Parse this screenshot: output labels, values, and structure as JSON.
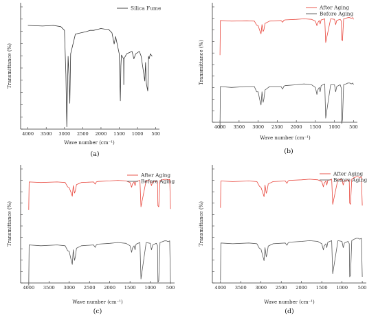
{
  "figure": {
    "panels": [
      {
        "id": "a",
        "label": "(a)"
      },
      {
        "id": "b",
        "label": "(b)"
      },
      {
        "id": "c",
        "label": "(c)"
      },
      {
        "id": "d",
        "label": "(d)"
      }
    ]
  },
  "chart_data": [
    {
      "type": "line",
      "panel": "(a)",
      "xlabel": "Wave number (cm⁻¹)",
      "ylabel": "Transmittance (%)",
      "xlim": [
        4200,
        400
      ],
      "x_reversed": true,
      "xticks": [
        4000,
        3500,
        3000,
        2500,
        2000,
        1500,
        1000,
        500
      ],
      "legend_position": "top-right",
      "series": [
        {
          "name": "Silica Fume",
          "color": "#333333",
          "x": [
            4000,
            3600,
            3300,
            3100,
            3000,
            2960,
            2935,
            2900,
            2870,
            2853,
            2830,
            2700,
            2400,
            2300,
            2200,
            2000,
            1900,
            1800,
            1700,
            1640,
            1600,
            1500,
            1470,
            1455,
            1440,
            1380,
            1376,
            1370,
            1300,
            1150,
            1100,
            1050,
            950,
            900,
            850,
            800,
            780,
            760,
            720,
            700,
            680,
            650,
            600
          ],
          "y": [
            85,
            84.5,
            85,
            84,
            81,
            45,
            3,
            60,
            40,
            22,
            62,
            78,
            80,
            81,
            81,
            82.5,
            82,
            82,
            79,
            70,
            76,
            62,
            24,
            52,
            61,
            58,
            37,
            58,
            62,
            64,
            58,
            62,
            64,
            60,
            50,
            40,
            55,
            38,
            32,
            60,
            58,
            62,
            60
          ]
        }
      ]
    },
    {
      "type": "line",
      "panel": "(b)",
      "xlabel": "Wave number (cm⁻¹)",
      "ylabel": "Transmittance (%)",
      "xlim": [
        4200,
        400
      ],
      "x_reversed": true,
      "xticks": [
        4000,
        3500,
        3000,
        2500,
        2000,
        1500,
        1000,
        500
      ],
      "legend_position": "top-right",
      "series": [
        {
          "name": "After Aging",
          "color": "#e8443a",
          "x": [
            4000,
            3990,
            3700,
            3300,
            3100,
            3040,
            3000,
            2960,
            2925,
            2900,
            2870,
            2850,
            2820,
            2700,
            2400,
            2360,
            2330,
            2300,
            2000,
            1800,
            1600,
            1500,
            1460,
            1440,
            1400,
            1376,
            1350,
            1300,
            1255,
            1230,
            1100,
            1000,
            970,
            940,
            900,
            850,
            820,
            810,
            790,
            760,
            700,
            650,
            600,
            560,
            520,
            500
          ],
          "y": [
            33,
            93,
            92,
            92.5,
            92,
            85,
            84,
            76,
            70,
            86,
            74,
            77,
            88,
            92,
            93,
            90,
            93,
            94,
            95,
            96,
            95,
            92,
            84,
            89,
            93,
            87,
            94,
            95,
            96,
            55,
            96,
            95,
            86,
            93,
            94,
            95,
            92,
            60,
            58,
            96,
            97,
            98,
            98,
            97,
            98,
            95
          ]
        },
        {
          "name": "Before Aging",
          "color": "#555555",
          "x": [
            4000,
            3990,
            3700,
            3300,
            3100,
            3040,
            3000,
            2960,
            2925,
            2900,
            2870,
            2850,
            2820,
            2700,
            2400,
            2360,
            2330,
            2300,
            2000,
            1800,
            1600,
            1500,
            1460,
            1440,
            1400,
            1376,
            1350,
            1300,
            1255,
            1230,
            1100,
            1000,
            970,
            940,
            900,
            850,
            820,
            810,
            790,
            760,
            700,
            650,
            600,
            560,
            520,
            500
          ],
          "y": [
            2,
            50,
            49,
            50,
            50,
            44,
            44,
            35,
            29,
            44,
            32,
            36,
            46,
            50,
            50,
            47,
            50,
            51,
            52,
            53,
            52,
            49,
            41,
            46,
            49,
            44,
            51,
            52,
            53,
            14,
            52,
            52,
            44,
            50,
            51,
            52,
            48,
            8,
            12,
            52,
            53,
            54,
            54,
            53,
            54,
            52
          ]
        }
      ]
    },
    {
      "type": "line",
      "panel": "(c)",
      "xlabel": "Wave number (cm⁻¹)",
      "ylabel": "Transmittance (%)",
      "xlim": [
        4200,
        400
      ],
      "x_reversed": true,
      "xticks": [
        4000,
        3500,
        3000,
        2500,
        2000,
        1500,
        1000,
        500
      ],
      "legend_position": "top-right",
      "series": [
        {
          "name": "After Aging",
          "color": "#e8443a",
          "x": [
            4000,
            3990,
            3700,
            3300,
            3100,
            3040,
            3000,
            2960,
            2925,
            2900,
            2870,
            2850,
            2820,
            2700,
            2400,
            2360,
            2330,
            2300,
            2000,
            1800,
            1600,
            1500,
            1460,
            1440,
            1400,
            1376,
            1350,
            1300,
            1255,
            1230,
            1100,
            1000,
            970,
            940,
            900,
            850,
            820,
            810,
            790,
            760,
            700,
            650,
            600,
            560,
            520,
            500
          ],
          "y": [
            38,
            91,
            90,
            91,
            90,
            82,
            80,
            72,
            64,
            84,
            70,
            74,
            86,
            90,
            91,
            87,
            91,
            92,
            93,
            94,
            93,
            90,
            81,
            87,
            91,
            84,
            92,
            93,
            94,
            44,
            94,
            93,
            84,
            91,
            92,
            93,
            90,
            46,
            44,
            94,
            95,
            96,
            96,
            95,
            96,
            40
          ]
        },
        {
          "name": "Before Aging",
          "color": "#555555",
          "x": [
            4000,
            3990,
            3700,
            3300,
            3100,
            3040,
            3000,
            2960,
            2925,
            2900,
            2870,
            2850,
            2820,
            2700,
            2400,
            2360,
            2330,
            2300,
            2000,
            1800,
            1600,
            1500,
            1460,
            1440,
            1400,
            1376,
            1350,
            1300,
            1255,
            1230,
            1100,
            1000,
            970,
            940,
            900,
            850,
            820,
            810,
            790,
            760,
            700,
            650,
            600,
            560,
            520,
            500
          ],
          "y": [
            2,
            52,
            51,
            52,
            51,
            45,
            44,
            35,
            28,
            46,
            33,
            37,
            48,
            51,
            52,
            49,
            52,
            53,
            54,
            55,
            54,
            51,
            43,
            48,
            51,
            46,
            53,
            54,
            55,
            10,
            55,
            54,
            46,
            52,
            53,
            54,
            51,
            6,
            8,
            55,
            56,
            57,
            57,
            56,
            57,
            4
          ]
        }
      ]
    },
    {
      "type": "line",
      "panel": "(d)",
      "xlabel": "Wave number (cm⁻¹)",
      "ylabel": "Transmittance (%)",
      "xlim": [
        4200,
        400
      ],
      "x_reversed": true,
      "xticks": [
        4000,
        3500,
        3000,
        2500,
        2000,
        1500,
        1000,
        500
      ],
      "legend_position": "top-right",
      "series": [
        {
          "name": "After Aging",
          "color": "#e8443a",
          "x": [
            4000,
            3990,
            3700,
            3300,
            3100,
            3040,
            3000,
            2960,
            2925,
            2900,
            2870,
            2850,
            2820,
            2700,
            2400,
            2360,
            2330,
            2300,
            2000,
            1800,
            1600,
            1500,
            1460,
            1440,
            1400,
            1376,
            1350,
            1300,
            1255,
            1230,
            1100,
            1000,
            970,
            940,
            900,
            850,
            820,
            810,
            790,
            760,
            700,
            650,
            600,
            560,
            520,
            500
          ],
          "y": [
            44,
            90,
            89,
            90,
            89,
            81,
            79,
            71,
            63,
            83,
            69,
            73,
            85,
            89,
            90,
            86,
            90,
            91,
            92,
            93,
            92,
            89,
            80,
            86,
            90,
            83,
            91,
            92,
            93,
            50,
            93,
            92,
            83,
            90,
            91,
            92,
            89,
            52,
            50,
            93,
            96,
            97,
            97,
            96,
            97,
            48
          ]
        },
        {
          "name": "Before Aging",
          "color": "#555555",
          "x": [
            4000,
            3990,
            3700,
            3300,
            3100,
            3040,
            3000,
            2960,
            2925,
            2900,
            2870,
            2850,
            2820,
            2700,
            2400,
            2360,
            2330,
            2300,
            2000,
            1800,
            1600,
            1500,
            1460,
            1440,
            1400,
            1376,
            1350,
            1300,
            1255,
            1230,
            1100,
            1000,
            970,
            940,
            900,
            850,
            820,
            810,
            790,
            760,
            700,
            650,
            600,
            560,
            520,
            500
          ],
          "y": [
            3,
            52,
            51,
            52,
            51,
            45,
            44,
            36,
            29,
            46,
            34,
            38,
            48,
            51,
            52,
            49,
            52,
            53,
            54,
            55,
            54,
            51,
            43,
            48,
            51,
            46,
            53,
            54,
            55,
            12,
            55,
            54,
            46,
            52,
            53,
            54,
            51,
            8,
            10,
            55,
            57,
            58,
            58,
            57,
            58,
            8
          ]
        }
      ]
    }
  ]
}
